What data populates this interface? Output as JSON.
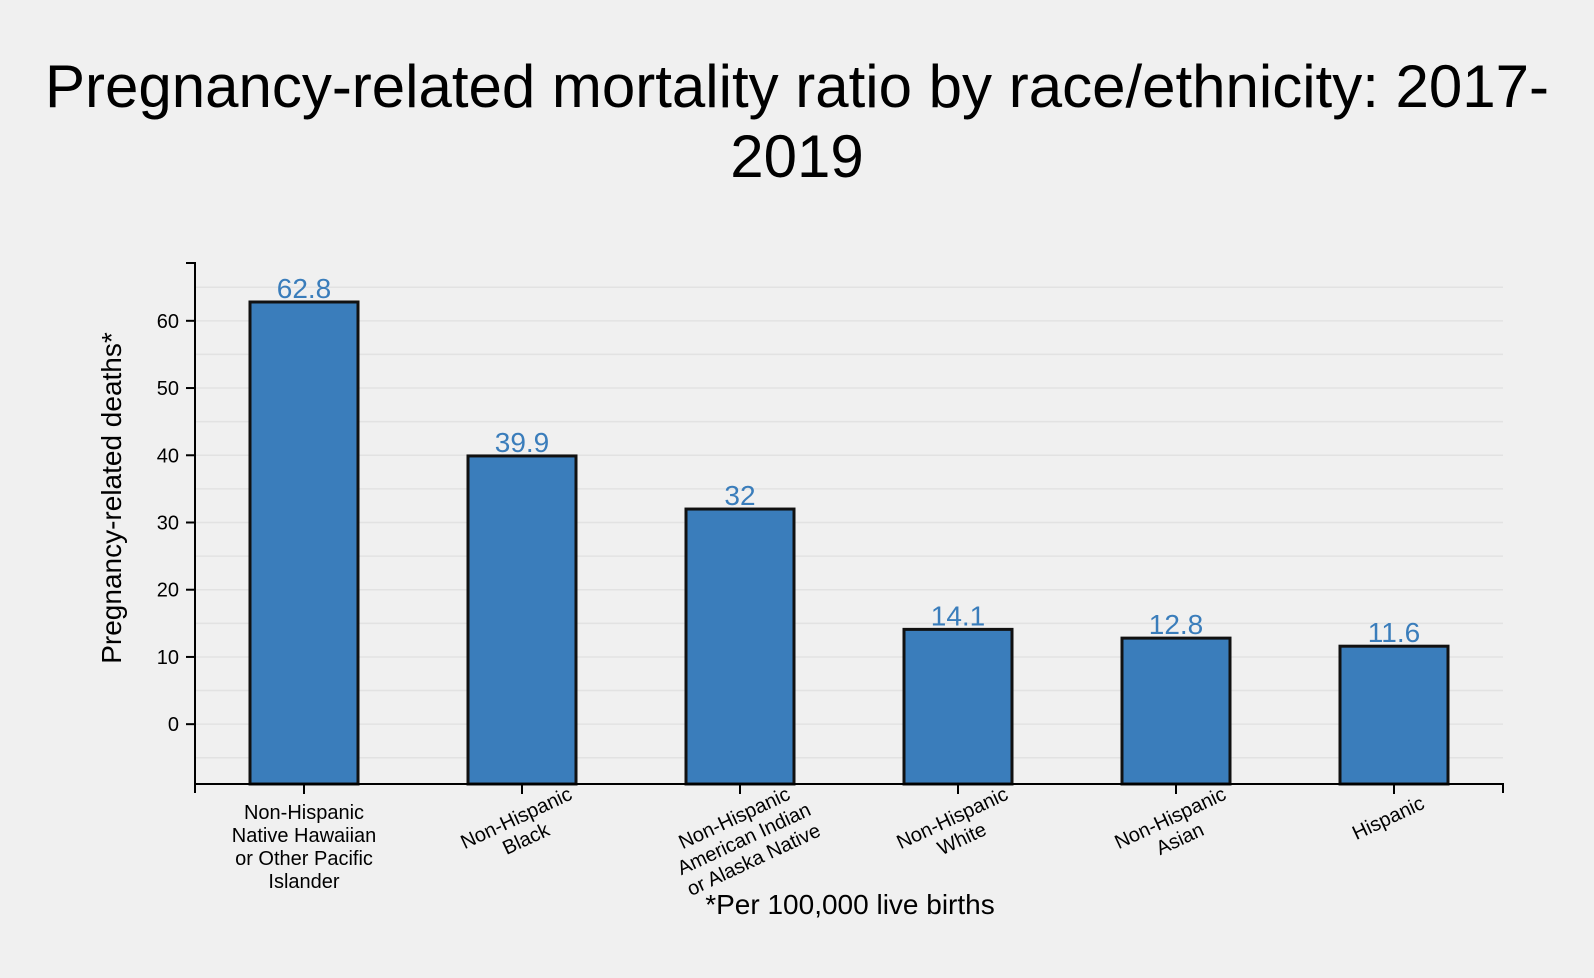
{
  "chart_data": {
    "type": "bar",
    "title_lines": [
      "Pregnancy-related mortality ratio by race/ethnicity: 2017-",
      "2019"
    ],
    "ylabel": "Pregnancy-related deaths*",
    "footnote": "*Per 100,000 live births",
    "categories": [
      [
        "Non-Hispanic",
        "Native Hawaiian",
        "or Other Pacific",
        "Islander"
      ],
      [
        "Non-Hispanic",
        "Black"
      ],
      [
        "Non-Hispanic",
        "American Indian",
        "or Alaska Native"
      ],
      [
        "Non-Hispanic",
        "White"
      ],
      [
        "Non-Hispanic",
        "Asian"
      ],
      [
        "Hispanic"
      ]
    ],
    "values": [
      62.8,
      39.9,
      32,
      14.1,
      12.8,
      11.6
    ],
    "value_labels": [
      "62.8",
      "39.9",
      "32",
      "14.1",
      "12.8",
      "11.6"
    ],
    "yticks": [
      0,
      10,
      20,
      30,
      40,
      50,
      60
    ],
    "ylim": [
      -8.9,
      68.6
    ],
    "colors": {
      "bar": "#3a7dbb",
      "bar_stroke": "#111111",
      "grid": "#e2e2e2",
      "value_label": "#3a7dbb"
    }
  }
}
